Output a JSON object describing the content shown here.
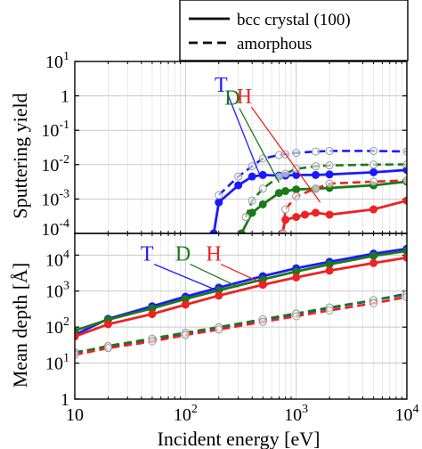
{
  "chart_data": [
    {
      "type": "line",
      "panel": "top",
      "ylabel": "Sputtering yield",
      "xlabel": "",
      "x_scale": "log",
      "y_scale": "log",
      "xlim": [
        10,
        10000
      ],
      "ylim": [
        0.0001,
        10
      ],
      "y_ticks": [
        {
          "v": 0.0001,
          "m": "10",
          "e": "-4"
        },
        {
          "v": 0.001,
          "m": "10",
          "e": "-3"
        },
        {
          "v": 0.01,
          "m": "10",
          "e": "-2"
        },
        {
          "v": 0.1,
          "m": "10",
          "e": "-1"
        },
        {
          "v": 1,
          "m": "1",
          "e": ""
        },
        {
          "v": 10,
          "m": "10",
          "e": "1"
        }
      ],
      "grid": true,
      "annotations": [
        {
          "text": "T",
          "color": "#1a1aff",
          "label_x": 210,
          "label_y": 1.3,
          "target_x": 475,
          "target_y": 0.0045
        },
        {
          "text": "D",
          "color": "#1a7a1a",
          "label_x": 265,
          "label_y": 0.55,
          "target_x": 700,
          "target_y": 0.003
        },
        {
          "text": "H",
          "color": "#ee2222",
          "label_x": 340,
          "label_y": 0.6,
          "target_x": 1650,
          "target_y": 0.0008
        }
      ],
      "series": [
        {
          "isotope": "T",
          "style": "solid",
          "color": "#1a1aff",
          "markers": "filled",
          "x": [
            180,
            200,
            300,
            400,
            500,
            700,
            800,
            1000,
            1500,
            2000,
            5000,
            10000
          ],
          "y": [
            0.0001,
            0.0008,
            0.0025,
            0.0045,
            0.005,
            0.0048,
            0.0048,
            0.005,
            0.005,
            0.0052,
            0.006,
            0.007
          ]
        },
        {
          "isotope": "T",
          "style": "dashed",
          "color": "#1a1aff",
          "markers": "open",
          "x": [
            200,
            300,
            400,
            500,
            700,
            800,
            1000,
            1500,
            2000,
            5000,
            10000
          ],
          "y": [
            0.0013,
            0.0045,
            0.009,
            0.015,
            0.019,
            0.02,
            0.022,
            0.024,
            0.025,
            0.025,
            0.024
          ]
        },
        {
          "isotope": "D",
          "style": "solid",
          "color": "#1a7a1a",
          "markers": "filled",
          "x": [
            320,
            400,
            500,
            700,
            800,
            1000,
            1500,
            2000,
            5000,
            10000
          ],
          "y": [
            0.0001,
            0.0004,
            0.0007,
            0.0015,
            0.0017,
            0.0019,
            0.002,
            0.0021,
            0.0025,
            0.0032
          ]
        },
        {
          "isotope": "D",
          "style": "dashed",
          "color": "#1a7a1a",
          "markers": "open",
          "x": [
            350,
            400,
            500,
            700,
            800,
            1000,
            1500,
            2000,
            5000,
            10000
          ],
          "y": [
            0.0003,
            0.0009,
            0.002,
            0.0045,
            0.0055,
            0.0075,
            0.009,
            0.0095,
            0.01,
            0.0102
          ]
        },
        {
          "isotope": "H",
          "style": "solid",
          "color": "#ee2222",
          "markers": "filled",
          "x": [
            750,
            800,
            1000,
            1200,
            1500,
            2000,
            5000,
            10000
          ],
          "y": [
            0.0001,
            0.00025,
            0.0003,
            0.00035,
            0.0004,
            0.00035,
            0.0005,
            0.0009
          ]
        },
        {
          "isotope": "H",
          "style": "dashed",
          "color": "#ee2222",
          "markers": "open",
          "x": [
            760,
            800,
            1000,
            1500,
            2000,
            5000,
            10000
          ],
          "y": [
            0.0001,
            0.0005,
            0.0012,
            0.002,
            0.0028,
            0.0032,
            0.0035
          ]
        }
      ]
    },
    {
      "type": "line",
      "panel": "bottom",
      "ylabel": "Mean depth [Å]",
      "xlabel": "Incident energy [eV]",
      "x_scale": "log",
      "y_scale": "log",
      "xlim": [
        10,
        10000
      ],
      "ylim": [
        1,
        40000
      ],
      "x_ticks": [
        {
          "v": 10,
          "m": "10",
          "e": ""
        },
        {
          "v": 100,
          "m": "10",
          "e": "2"
        },
        {
          "v": 1000,
          "m": "10",
          "e": "3"
        },
        {
          "v": 10000,
          "m": "10",
          "e": "4"
        }
      ],
      "y_ticks": [
        {
          "v": 1,
          "m": "1",
          "e": ""
        },
        {
          "v": 10,
          "m": "10",
          "e": "1"
        },
        {
          "v": 100,
          "m": "10",
          "e": "2"
        },
        {
          "v": 1000,
          "m": "10",
          "e": "3"
        },
        {
          "v": 10000,
          "m": "10",
          "e": "4"
        }
      ],
      "grid": true,
      "annotations": [
        {
          "text": "T",
          "color": "#1a1aff",
          "label_x": 45,
          "label_y": 7000,
          "target_x": 200,
          "target_y": 1000
        },
        {
          "text": "D",
          "color": "#1a7a1a",
          "label_x": 95,
          "label_y": 7000,
          "target_x": 300,
          "target_y": 1300
        },
        {
          "text": "H",
          "color": "#ee2222",
          "label_x": 180,
          "label_y": 7000,
          "target_x": 550,
          "target_y": 1400
        }
      ],
      "series": [
        {
          "isotope": "T",
          "style": "solid",
          "color": "#1a1aff",
          "markers": "filled",
          "x": [
            10,
            20,
            50,
            100,
            200,
            500,
            1000,
            2000,
            5000,
            10000
          ],
          "y": [
            60,
            170,
            380,
            700,
            1250,
            2600,
            4300,
            6500,
            11000,
            15000
          ]
        },
        {
          "isotope": "D",
          "style": "solid",
          "color": "#1a7a1a",
          "markers": "filled",
          "x": [
            10,
            20,
            50,
            100,
            200,
            500,
            1000,
            2000,
            5000,
            10000
          ],
          "y": [
            80,
            160,
            330,
            600,
            1050,
            2100,
            3500,
            5500,
            9500,
            13000
          ]
        },
        {
          "isotope": "H",
          "style": "solid",
          "color": "#ee2222",
          "markers": "filled",
          "x": [
            10,
            20,
            50,
            100,
            200,
            500,
            1000,
            2000,
            5000,
            10000
          ],
          "y": [
            55,
            120,
            230,
            420,
            750,
            1500,
            2400,
            3700,
            6000,
            8500
          ]
        },
        {
          "isotope": "T",
          "style": "dashed",
          "color": "#1a1aff",
          "markers": "open",
          "x": [
            10,
            20,
            50,
            100,
            200,
            500,
            1000,
            2000,
            5000,
            10000
          ],
          "y": [
            20,
            28,
            45,
            65,
            95,
            160,
            230,
            340,
            550,
            850
          ]
        },
        {
          "isotope": "D",
          "style": "dashed",
          "color": "#1a7a1a",
          "markers": "open",
          "x": [
            10,
            20,
            50,
            100,
            200,
            500,
            1000,
            2000,
            5000,
            10000
          ],
          "y": [
            19,
            30,
            48,
            70,
            100,
            165,
            240,
            350,
            560,
            800
          ]
        },
        {
          "isotope": "H",
          "style": "dashed",
          "color": "#ee2222",
          "markers": "open",
          "x": [
            10,
            20,
            50,
            100,
            200,
            500,
            1000,
            2000,
            5000,
            10000
          ],
          "y": [
            17,
            26,
            40,
            60,
            85,
            140,
            200,
            290,
            460,
            680
          ]
        }
      ]
    }
  ],
  "legend": {
    "placement": "top-right",
    "entries": [
      {
        "label": "bcc crystal (100)",
        "style": "solid"
      },
      {
        "label": "amorphous",
        "style": "dashed"
      }
    ]
  }
}
